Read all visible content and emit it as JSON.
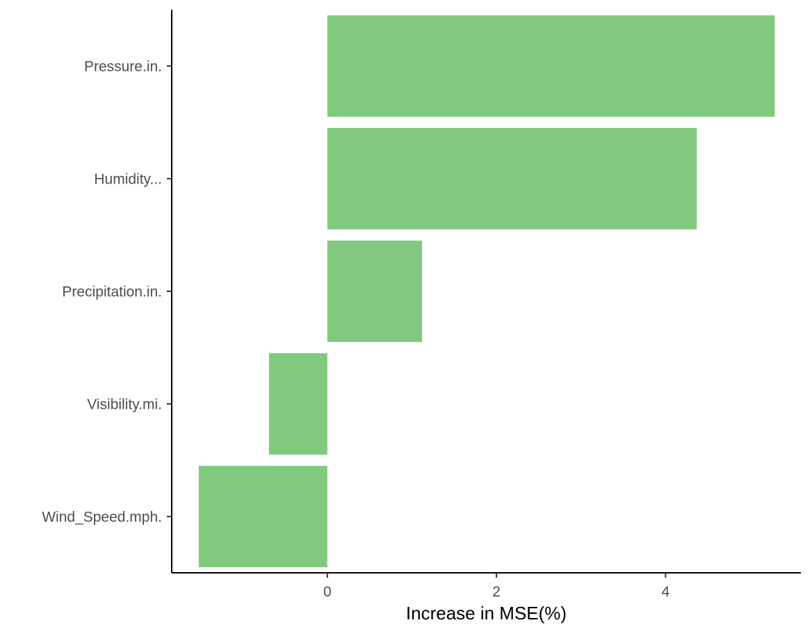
{
  "chart_data": {
    "type": "bar",
    "orientation": "horizontal",
    "categories": [
      "Pressure.in.",
      "Humidity...",
      "Precipitation.in.",
      "Visibility.mi.",
      "Wind_Speed.mph."
    ],
    "values": [
      5.29,
      4.37,
      1.12,
      -0.69,
      -1.52
    ],
    "xlabel": "Increase in MSE(%)",
    "ylabel": "",
    "title": "",
    "xlim": [
      -1.84,
      5.6
    ],
    "xticks": [
      0,
      2,
      4
    ],
    "xtick_labels": [
      "0",
      "2",
      "4"
    ],
    "bar_color": "#80c97e",
    "grid": false,
    "legend": "none"
  }
}
